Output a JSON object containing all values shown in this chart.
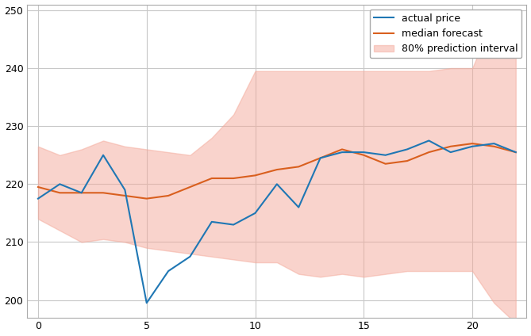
{
  "x": [
    0,
    1,
    2,
    3,
    4,
    5,
    6,
    7,
    8,
    9,
    10,
    11,
    12,
    13,
    14,
    15,
    16,
    17,
    18,
    19,
    20,
    21,
    22
  ],
  "actual_price": [
    217.5,
    220.0,
    218.5,
    225.0,
    219.0,
    199.5,
    205.0,
    207.5,
    213.5,
    213.0,
    215.0,
    220.0,
    216.0,
    224.5,
    225.5,
    225.5,
    225.0,
    226.0,
    227.5,
    225.5,
    226.5,
    227.0,
    225.5
  ],
  "median_forecast": [
    219.5,
    218.5,
    218.5,
    218.5,
    218.0,
    217.5,
    218.0,
    219.5,
    221.0,
    221.0,
    221.5,
    222.5,
    223.0,
    224.5,
    226.0,
    225.0,
    223.5,
    224.0,
    225.5,
    226.5,
    227.0,
    226.5,
    225.5
  ],
  "upper_bound": [
    226.5,
    225.0,
    226.0,
    227.5,
    226.5,
    226.0,
    225.5,
    225.0,
    228.0,
    232.0,
    239.5,
    239.5,
    239.5,
    239.5,
    239.5,
    239.5,
    239.5,
    239.5,
    239.5,
    240.0,
    240.0,
    249.0,
    249.0
  ],
  "lower_bound": [
    214.0,
    212.0,
    210.0,
    210.5,
    210.0,
    209.0,
    208.5,
    208.0,
    207.5,
    207.0,
    206.5,
    206.5,
    204.5,
    204.0,
    204.5,
    204.0,
    204.5,
    205.0,
    205.0,
    205.0,
    205.0,
    199.5,
    196.0
  ],
  "actual_color": "#1f77b4",
  "forecast_color": "#d95f1e",
  "interval_color": "#f4a99a",
  "interval_alpha": 0.5,
  "xlim": [
    -0.5,
    22.5
  ],
  "ylim": [
    197,
    251
  ],
  "yticks": [
    200,
    210,
    220,
    230,
    240,
    250
  ],
  "xticks": [
    0,
    5,
    10,
    15,
    20
  ],
  "grid_color": "#c8c8c8",
  "legend_actual": "actual price",
  "legend_forecast": "median forecast",
  "legend_interval": "80% prediction interval",
  "bg_color": "#ffffff",
  "figwidth": 6.69,
  "figheight": 4.24,
  "dpi": 100
}
